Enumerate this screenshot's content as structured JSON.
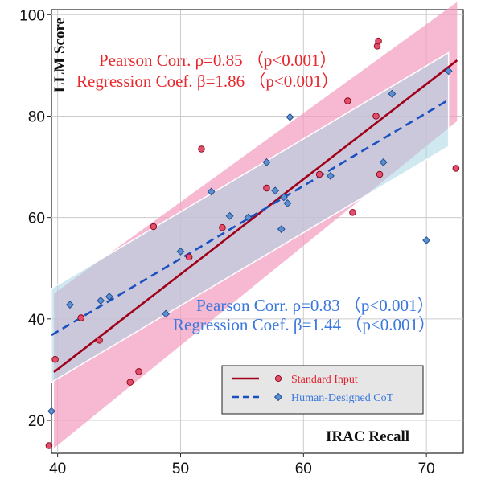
{
  "chart_data": {
    "type": "scatter",
    "xlabel": "IRAC Recall",
    "ylabel": "LLM Score",
    "xlim": [
      39.5,
      73
    ],
    "ylim": [
      13.5,
      101
    ],
    "xticks": [
      40,
      50,
      60,
      70
    ],
    "yticks": [
      20,
      40,
      60,
      80,
      100
    ],
    "grid": true,
    "legend_position": "bottom-right",
    "series": [
      {
        "name": "Standard Input",
        "marker": "circle",
        "color": "#e0506e",
        "line_color": "#a00018",
        "band_color": "#f29bbe",
        "points": [
          [
            39.3,
            15.0
          ],
          [
            39.8,
            32.0
          ],
          [
            41.9,
            40.2
          ],
          [
            43.4,
            35.8
          ],
          [
            45.9,
            27.5
          ],
          [
            46.6,
            29.6
          ],
          [
            47.8,
            58.2
          ],
          [
            50.7,
            52.2
          ],
          [
            51.7,
            73.5
          ],
          [
            53.4,
            58.0
          ],
          [
            57.0,
            65.8
          ],
          [
            61.3,
            68.5
          ],
          [
            63.6,
            83.0
          ],
          [
            64.0,
            61.0
          ],
          [
            65.9,
            80.0
          ],
          [
            66.0,
            93.8
          ],
          [
            66.1,
            94.8
          ],
          [
            66.2,
            68.5
          ],
          [
            72.4,
            69.7
          ]
        ],
        "fit": {
          "x": [
            39.7,
            72.5
          ],
          "y": [
            29.5,
            91.0
          ]
        },
        "band": {
          "x": [
            39.7,
            72.5
          ],
          "lower": [
            14.5,
            79.0
          ],
          "upper": [
            45.0,
            102.5
          ]
        }
      },
      {
        "name": "Human-Designed CoT",
        "marker": "diamond",
        "color": "#5b8fd0",
        "line_color": "#1a50c0",
        "band_color": "#a9d5e3",
        "points": [
          [
            39.5,
            21.8
          ],
          [
            41.0,
            42.8
          ],
          [
            43.5,
            43.6
          ],
          [
            44.2,
            44.4
          ],
          [
            48.8,
            41.0
          ],
          [
            50.0,
            53.3
          ],
          [
            52.5,
            65.1
          ],
          [
            54.0,
            60.3
          ],
          [
            55.5,
            60.0
          ],
          [
            57.0,
            70.9
          ],
          [
            57.7,
            65.3
          ],
          [
            58.2,
            57.7
          ],
          [
            58.4,
            64.0
          ],
          [
            58.7,
            62.8
          ],
          [
            58.9,
            79.8
          ],
          [
            62.2,
            68.2
          ],
          [
            66.5,
            70.9
          ],
          [
            67.2,
            84.4
          ],
          [
            70.0,
            55.5
          ],
          [
            71.8,
            88.9
          ]
        ],
        "fit": {
          "x": [
            39.5,
            71.8
          ],
          "y": [
            36.8,
            83.2
          ]
        },
        "band": {
          "x": [
            39.5,
            71.8
          ],
          "lower": [
            27.5,
            74.0
          ],
          "upper": [
            46.0,
            92.5
          ]
        }
      }
    ],
    "annotations": [
      {
        "line1": "Pearson Corr.  ρ=0.85  （p<0.001）",
        "line2": "Regression Coef. β=1.86  （p<0.001）",
        "color": "#e8282e"
      },
      {
        "line1": "Pearson Corr.  ρ=0.83  （p<0.001）",
        "line2": "Regression Coef. β=1.44  （p<0.001）",
        "color": "#3a78dd"
      }
    ]
  }
}
